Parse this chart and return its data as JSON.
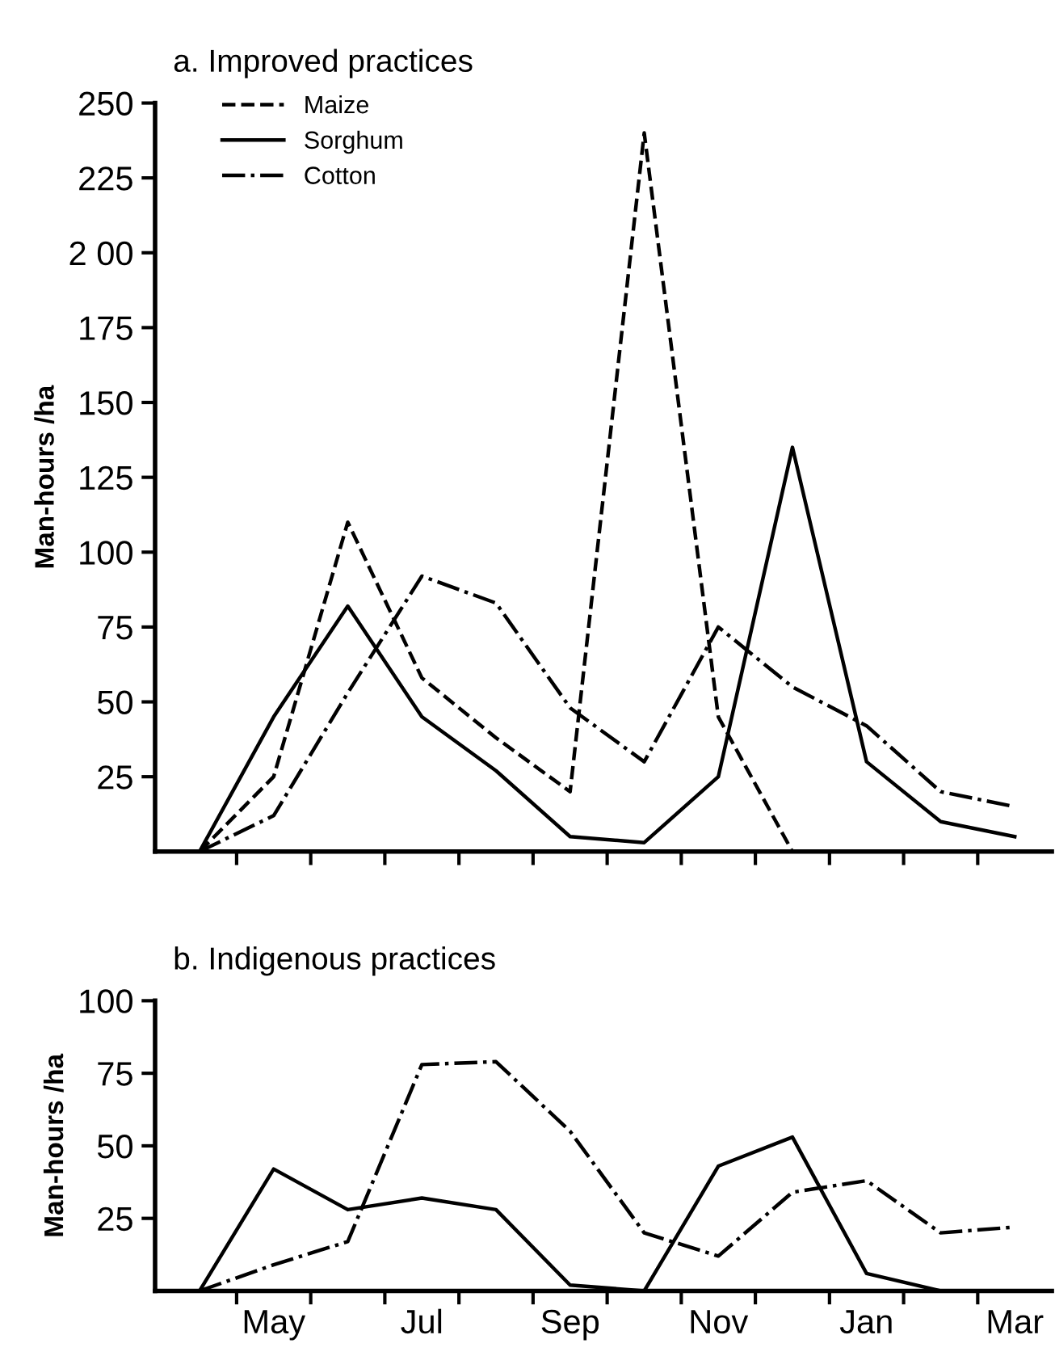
{
  "chart_data": [
    {
      "type": "line",
      "title": "a. Improved practices",
      "ylabel": "Man-hours /ha",
      "legend": "top left",
      "grid": false,
      "categories": [
        null,
        null,
        null,
        null,
        null,
        null,
        null,
        null,
        null,
        null,
        null,
        null
      ],
      "ylim": [
        0,
        250
      ],
      "yticks": [
        25,
        50,
        75,
        100,
        125,
        150,
        175,
        {
          "value": 200,
          "label": "2 00"
        },
        225,
        250
      ],
      "series": [
        {
          "name": "Maize",
          "color": "#000000",
          "line_style": "dashed",
          "values": [
            0,
            25,
            110,
            58,
            38,
            20,
            240,
            45,
            0,
            null,
            null,
            null
          ]
        },
        {
          "name": "Sorghum",
          "color": "#000000",
          "line_style": "solid",
          "values": [
            0,
            45,
            82,
            45,
            27,
            5,
            3,
            25,
            135,
            30,
            10,
            5
          ]
        },
        {
          "name": "Cotton",
          "color": "#000000",
          "line_style": "dashdot",
          "values": [
            0,
            12,
            53,
            92,
            83,
            48,
            30,
            75,
            55,
            42,
            20,
            15
          ]
        }
      ]
    },
    {
      "type": "line",
      "title": "b. Indigenous practices",
      "ylabel": "Man-hours /ha",
      "legend": false,
      "grid": false,
      "categories": [
        null,
        "May",
        null,
        "Jul",
        null,
        "Sep",
        null,
        "Nov",
        null,
        "Jan",
        null,
        "Mar"
      ],
      "ylim": [
        0,
        100
      ],
      "yticks": [
        25,
        50,
        75,
        100
      ],
      "series": [
        {
          "color": "#000000",
          "line_style": "solid",
          "values": [
            0,
            42,
            28,
            32,
            28,
            2,
            0,
            43,
            53,
            6,
            0,
            null
          ]
        },
        {
          "color": "#000000",
          "line_style": "dashdot",
          "values": [
            0,
            9,
            17,
            78,
            79,
            55,
            20,
            12,
            34,
            38,
            20,
            22
          ]
        }
      ]
    }
  ]
}
